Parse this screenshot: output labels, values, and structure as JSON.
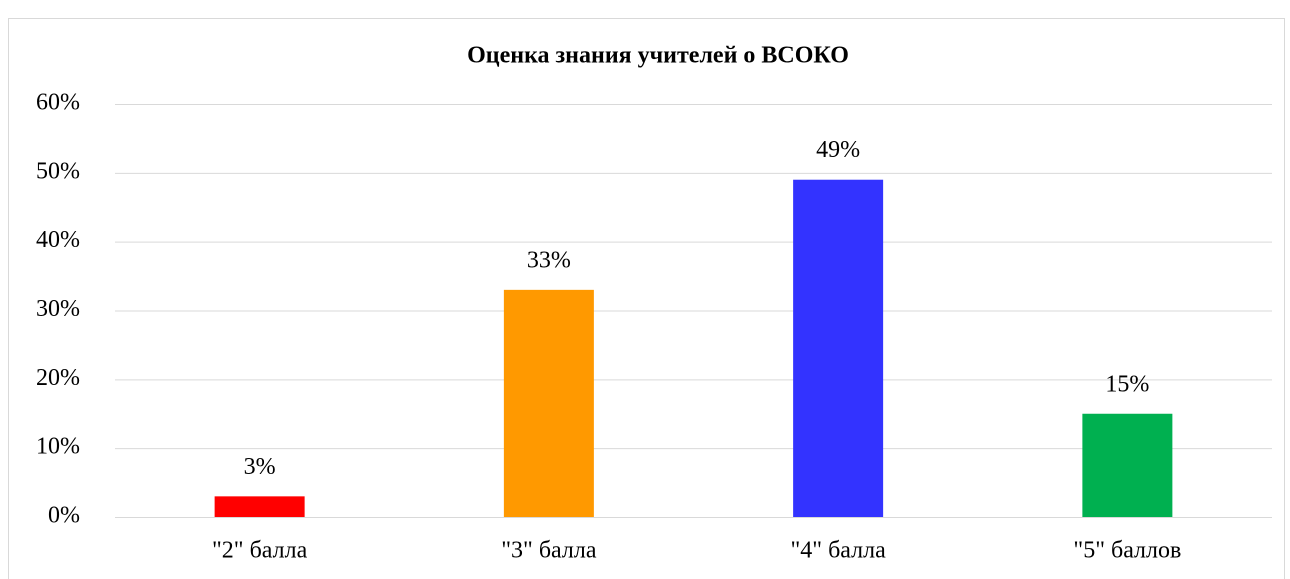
{
  "chart_data": {
    "type": "bar",
    "title": "Оценка знания учителей о ВСОКО",
    "categories": [
      "\"2\" балла",
      "\"3\" балла",
      "\"4\" балла",
      "\"5\" баллов"
    ],
    "values": [
      3,
      33,
      49,
      15
    ],
    "value_labels": [
      "3%",
      "33%",
      "49%",
      "15%"
    ],
    "colors": [
      "#ff0000",
      "#ff9900",
      "#3333ff",
      "#00b050"
    ],
    "ylim": [
      0,
      60
    ],
    "yticks": [
      {
        "value": 0,
        "label": "0%"
      },
      {
        "value": 10,
        "label": "10%"
      },
      {
        "value": 20,
        "label": "20%"
      },
      {
        "value": 30,
        "label": "30%"
      },
      {
        "value": 40,
        "label": "40%"
      },
      {
        "value": 50,
        "label": "50%"
      },
      {
        "value": 60,
        "label": "60%"
      }
    ],
    "grid": true
  }
}
